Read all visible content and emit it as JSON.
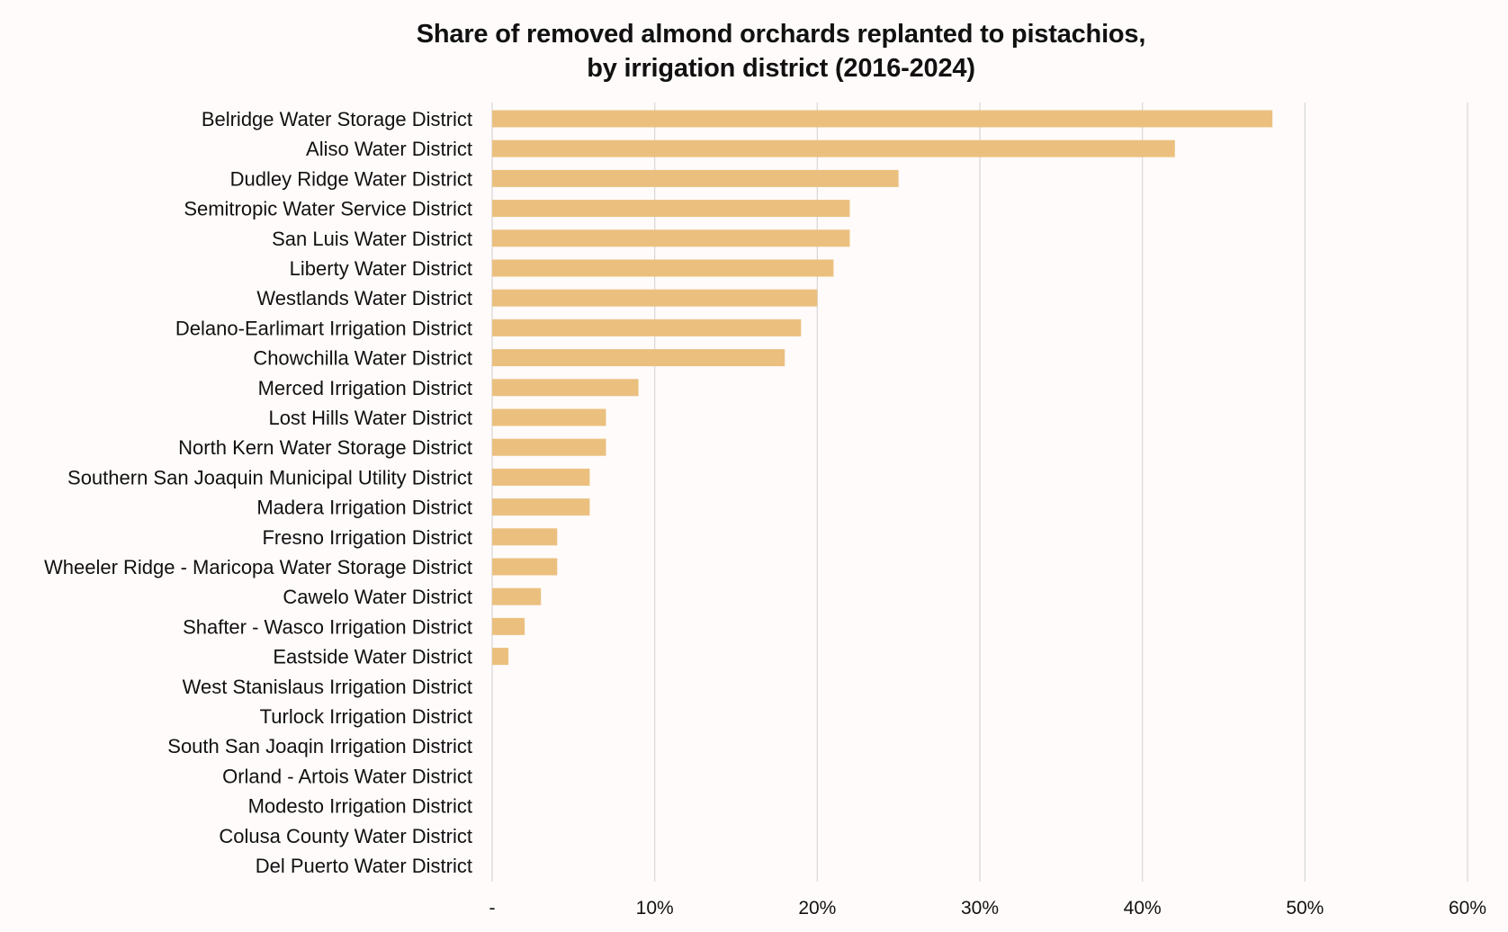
{
  "chart_data": {
    "type": "bar",
    "orientation": "horizontal",
    "title": "Share of removed almond orchards replanted to pistachios,",
    "subtitle": "by irrigation district (2016-2024)",
    "categories": [
      "Belridge Water Storage District",
      "Aliso Water District",
      "Dudley Ridge Water District",
      "Semitropic Water Service District",
      "San Luis Water District",
      "Liberty Water District",
      "Westlands Water District",
      "Delano-Earlimart Irrigation District",
      "Chowchilla Water District",
      "Merced Irrigation District",
      "Lost Hills Water District",
      "North Kern Water Storage District",
      "Southern San Joaquin Municipal Utility District",
      "Madera Irrigation District",
      "Fresno Irrigation District",
      "Wheeler Ridge - Maricopa Water Storage District",
      "Cawelo Water District",
      "Shafter - Wasco Irrigation District",
      "Eastside Water District",
      "West Stanislaus Irrigation District",
      "Turlock Irrigation District",
      "South San Joaqin Irrigation District",
      "Orland - Artois Water District",
      "Modesto Irrigation District",
      "Colusa County Water District",
      "Del Puerto Water District"
    ],
    "values": [
      48,
      42,
      25,
      22,
      22,
      21,
      20,
      19,
      18,
      9,
      7,
      7,
      6,
      6,
      4,
      4,
      3,
      2,
      1,
      0,
      0,
      0,
      0,
      0,
      0,
      0
    ],
    "value_unit": "percent",
    "xlim": [
      0,
      60
    ],
    "x_ticks": [
      0,
      10,
      20,
      30,
      40,
      50,
      60
    ],
    "x_tick_labels": [
      "-",
      "10%",
      "20%",
      "30%",
      "40%",
      "50%",
      "60%"
    ],
    "xlabel": "",
    "ylabel": "",
    "grid": "vertical",
    "legend": "none",
    "colors": {
      "bar": "#ebc07f",
      "grid": "#d9d9d9",
      "text": "#111111",
      "background": "#fffbfa"
    }
  }
}
